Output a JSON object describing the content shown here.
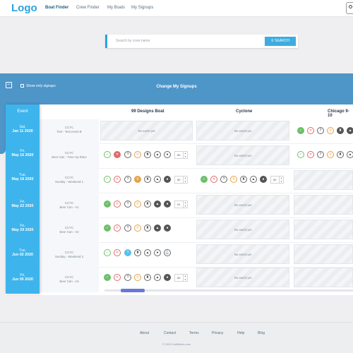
{
  "nav": {
    "logo": "Logo",
    "links": [
      "Boat Finder",
      "Crew Finder",
      "My Boats",
      "My Signups"
    ],
    "active": "Boat Finder"
  },
  "search": {
    "placeholder": "Search by crew name",
    "button": "SEARCH"
  },
  "band": {
    "show_only_signups": "Show only signups",
    "title": "Change My Signups"
  },
  "table": {
    "event_header": "Event",
    "boats": [
      "99 Designs Boat",
      "Cyclone",
      "Chicago 9-10"
    ],
    "no_event_text": "No event yet",
    "events": [
      {
        "day": "Sat,",
        "date": "Jan 11 2020",
        "club": "CCYC",
        "name": "Test - Test event B"
      },
      {
        "day": "Fri,",
        "date": "May 15 2020",
        "club": "CCYC",
        "name": "Beer Can - Tune Up Race"
      },
      {
        "day": "Tue,",
        "date": "May 19 2020",
        "club": "CCYC",
        "name": "Sunday - Weekend 1"
      },
      {
        "day": "Fri,",
        "date": "May 22 2020",
        "club": "CCYC",
        "name": "Beer Can - A1"
      },
      {
        "day": "Fri,",
        "date": "May 29 2020",
        "club": "CCYC",
        "name": "Beer Can - A2"
      },
      {
        "day": "Tue,",
        "date": "Jun 02 2020",
        "club": "CCYC",
        "name": "Sunday - Weekend 2"
      },
      {
        "day": "Fri,",
        "date": "Jun 05 2020",
        "club": "CCYC",
        "name": "Beer Can - A3"
      }
    ],
    "steppers": [
      "00",
      "00",
      "02",
      "01",
      "02"
    ]
  },
  "footer": {
    "links": [
      "About",
      "Contact",
      "Terms",
      "Privacy",
      "Help",
      "Blog"
    ],
    "copyright": "© 2020 SailMeets.com"
  },
  "colors": {
    "accent": "#2aa3dc",
    "band": "#4e95c8",
    "event_col": "#3eb4ec"
  }
}
